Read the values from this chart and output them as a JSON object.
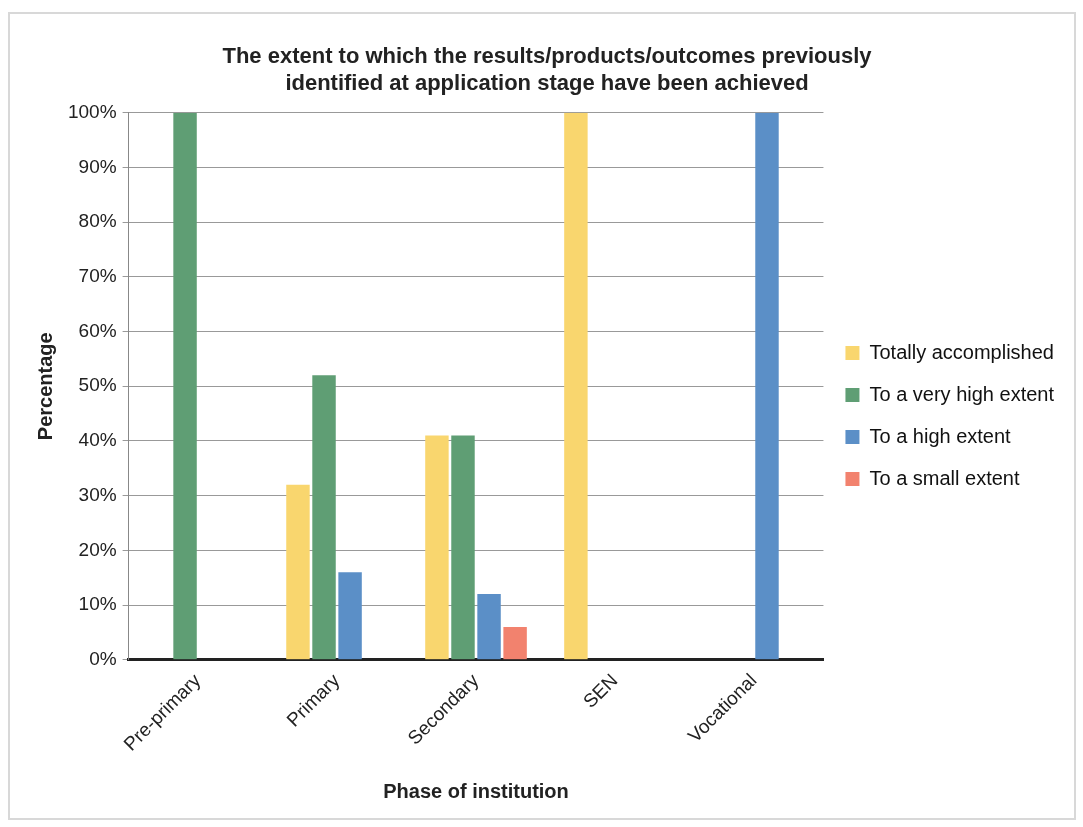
{
  "chart_data": {
    "type": "bar",
    "title": [
      "The extent to which the results/products/outcomes previously",
      "identified at application stage have been achieved"
    ],
    "xlabel": "Phase of institution",
    "ylabel": "Percentage",
    "categories": [
      "Pre-primary",
      "Primary",
      "Secondary",
      "SEN",
      "Vocational"
    ],
    "series": [
      {
        "name": "Totally accomplished",
        "color": "#f9d66e",
        "values": [
          0,
          32,
          41,
          100,
          0
        ]
      },
      {
        "name": "To a very high extent",
        "color": "#5f9e74",
        "values": [
          100,
          52,
          41,
          0,
          0
        ]
      },
      {
        "name": "To a high extent",
        "color": "#5b8fc7",
        "values": [
          0,
          16,
          12,
          0,
          100
        ]
      },
      {
        "name": "To a small extent",
        "color": "#f2826e",
        "values": [
          0,
          0,
          6,
          0,
          0
        ]
      }
    ],
    "ylim": [
      0,
      100
    ],
    "yticks": [
      {
        "value": 0,
        "label": "0%"
      },
      {
        "value": 10,
        "label": "10%"
      },
      {
        "value": 20,
        "label": "20%"
      },
      {
        "value": 30,
        "label": "30%"
      },
      {
        "value": 40,
        "label": "40%"
      },
      {
        "value": 50,
        "label": "50%"
      },
      {
        "value": 60,
        "label": "60%"
      },
      {
        "value": 70,
        "label": "70%"
      },
      {
        "value": 80,
        "label": "80%"
      },
      {
        "value": 90,
        "label": "90%"
      },
      {
        "value": 100,
        "label": "100%"
      }
    ],
    "grid": "y",
    "legend": "right"
  }
}
